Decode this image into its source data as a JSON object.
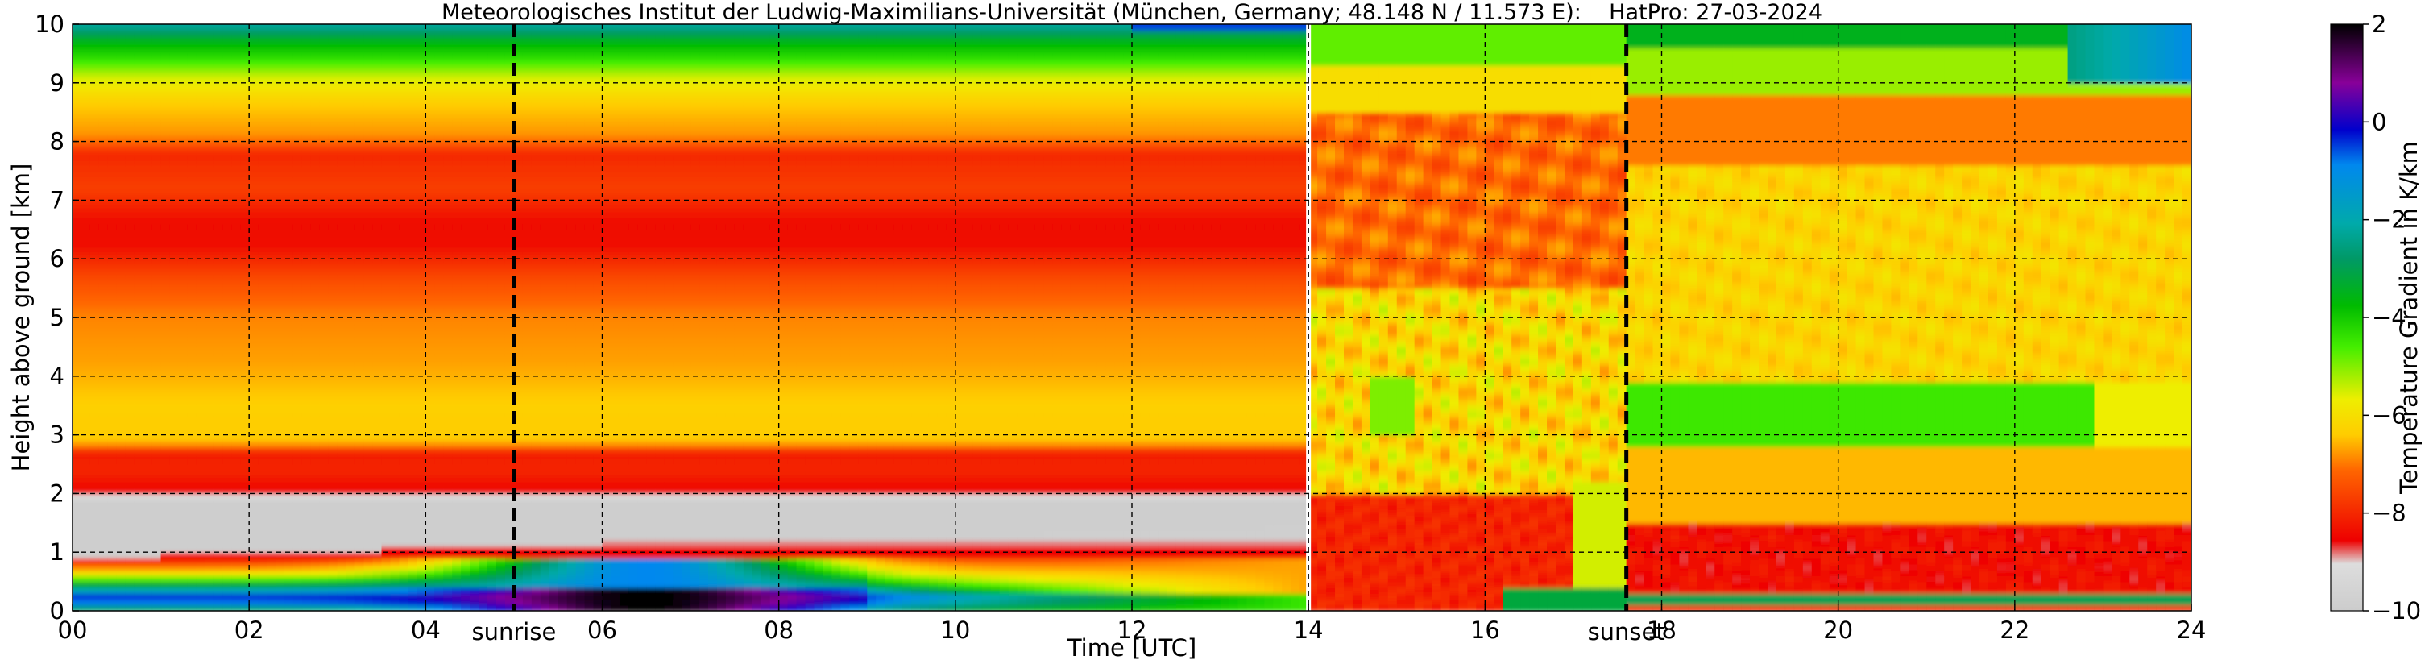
{
  "chart_data": {
    "type": "heatmap",
    "title": "Meteorologisches Institut der Ludwig-Maximilians-Universität (München, Germany; 48.148 N / 11.573 E):    HatPro: 27-03-2024",
    "xlabel": "Time [UTC]",
    "ylabel": "Height above ground [km]",
    "xlim": [
      0,
      24
    ],
    "ylim": [
      0,
      10
    ],
    "x_ticks": [
      "00",
      "02",
      "04",
      "06",
      "08",
      "10",
      "12",
      "14",
      "16",
      "18",
      "20",
      "22",
      "24"
    ],
    "y_ticks": [
      "0",
      "1",
      "2",
      "3",
      "4",
      "5",
      "6",
      "7",
      "8",
      "9",
      "10"
    ],
    "grid": true,
    "colorbar": {
      "label": "Temperature Gradient in K/km",
      "range": [
        -10,
        2
      ],
      "ticks": [
        "2",
        "0",
        "−2",
        "−4",
        "−6",
        "−8",
        "−10"
      ],
      "colors": [
        "#cccccc",
        "#ee0000",
        "#ff7700",
        "#ffcc00",
        "#eeee00",
        "#44ee00",
        "#009900",
        "#00aaaa",
        "#0088ee",
        "#0000cc",
        "#880099",
        "#000000"
      ]
    },
    "markers": [
      {
        "label": "sunrise",
        "x": 5.0,
        "style": "dashed"
      },
      {
        "label": "sunset",
        "x": 17.6,
        "style": "dashed"
      },
      {
        "x": 14.0,
        "style": "white-gap"
      }
    ]
  }
}
